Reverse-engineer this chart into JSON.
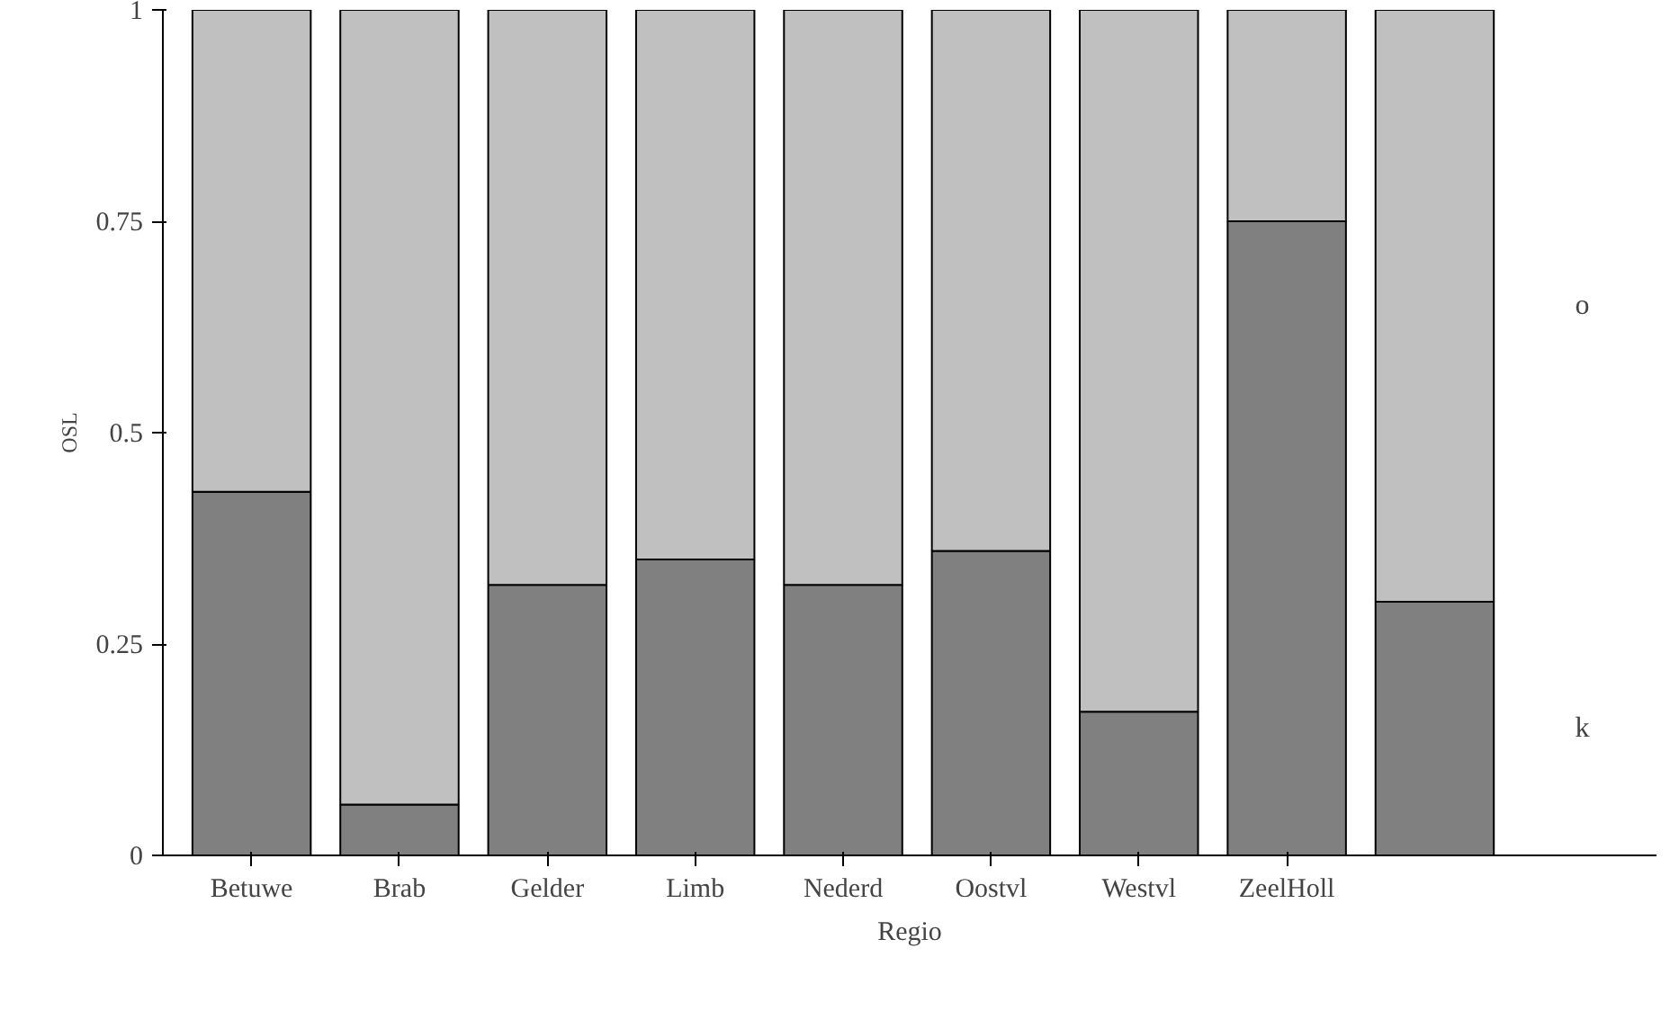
{
  "chart_data": {
    "type": "bar",
    "stacked": true,
    "ylabel": "OSL",
    "xlabel": "Regio",
    "categories": [
      "Betuwe",
      "Brab",
      "Gelder",
      "Limb",
      "Nederd",
      "Oostvl",
      "Westvl",
      "ZeelHoll",
      null
    ],
    "series": [
      {
        "name": "k",
        "color": "#808080",
        "values": [
          0.43,
          0.06,
          0.32,
          0.35,
          0.32,
          0.36,
          0.17,
          0.75,
          0.3
        ]
      },
      {
        "name": "o",
        "color": "#c0c0c0",
        "values": [
          0.57,
          0.94,
          0.68,
          0.65,
          0.68,
          0.64,
          0.83,
          0.25,
          0.7
        ]
      }
    ],
    "ylim": [
      0,
      1
    ],
    "yticks": [
      0,
      0.25,
      0.5,
      0.75,
      1
    ],
    "grid": false
  }
}
